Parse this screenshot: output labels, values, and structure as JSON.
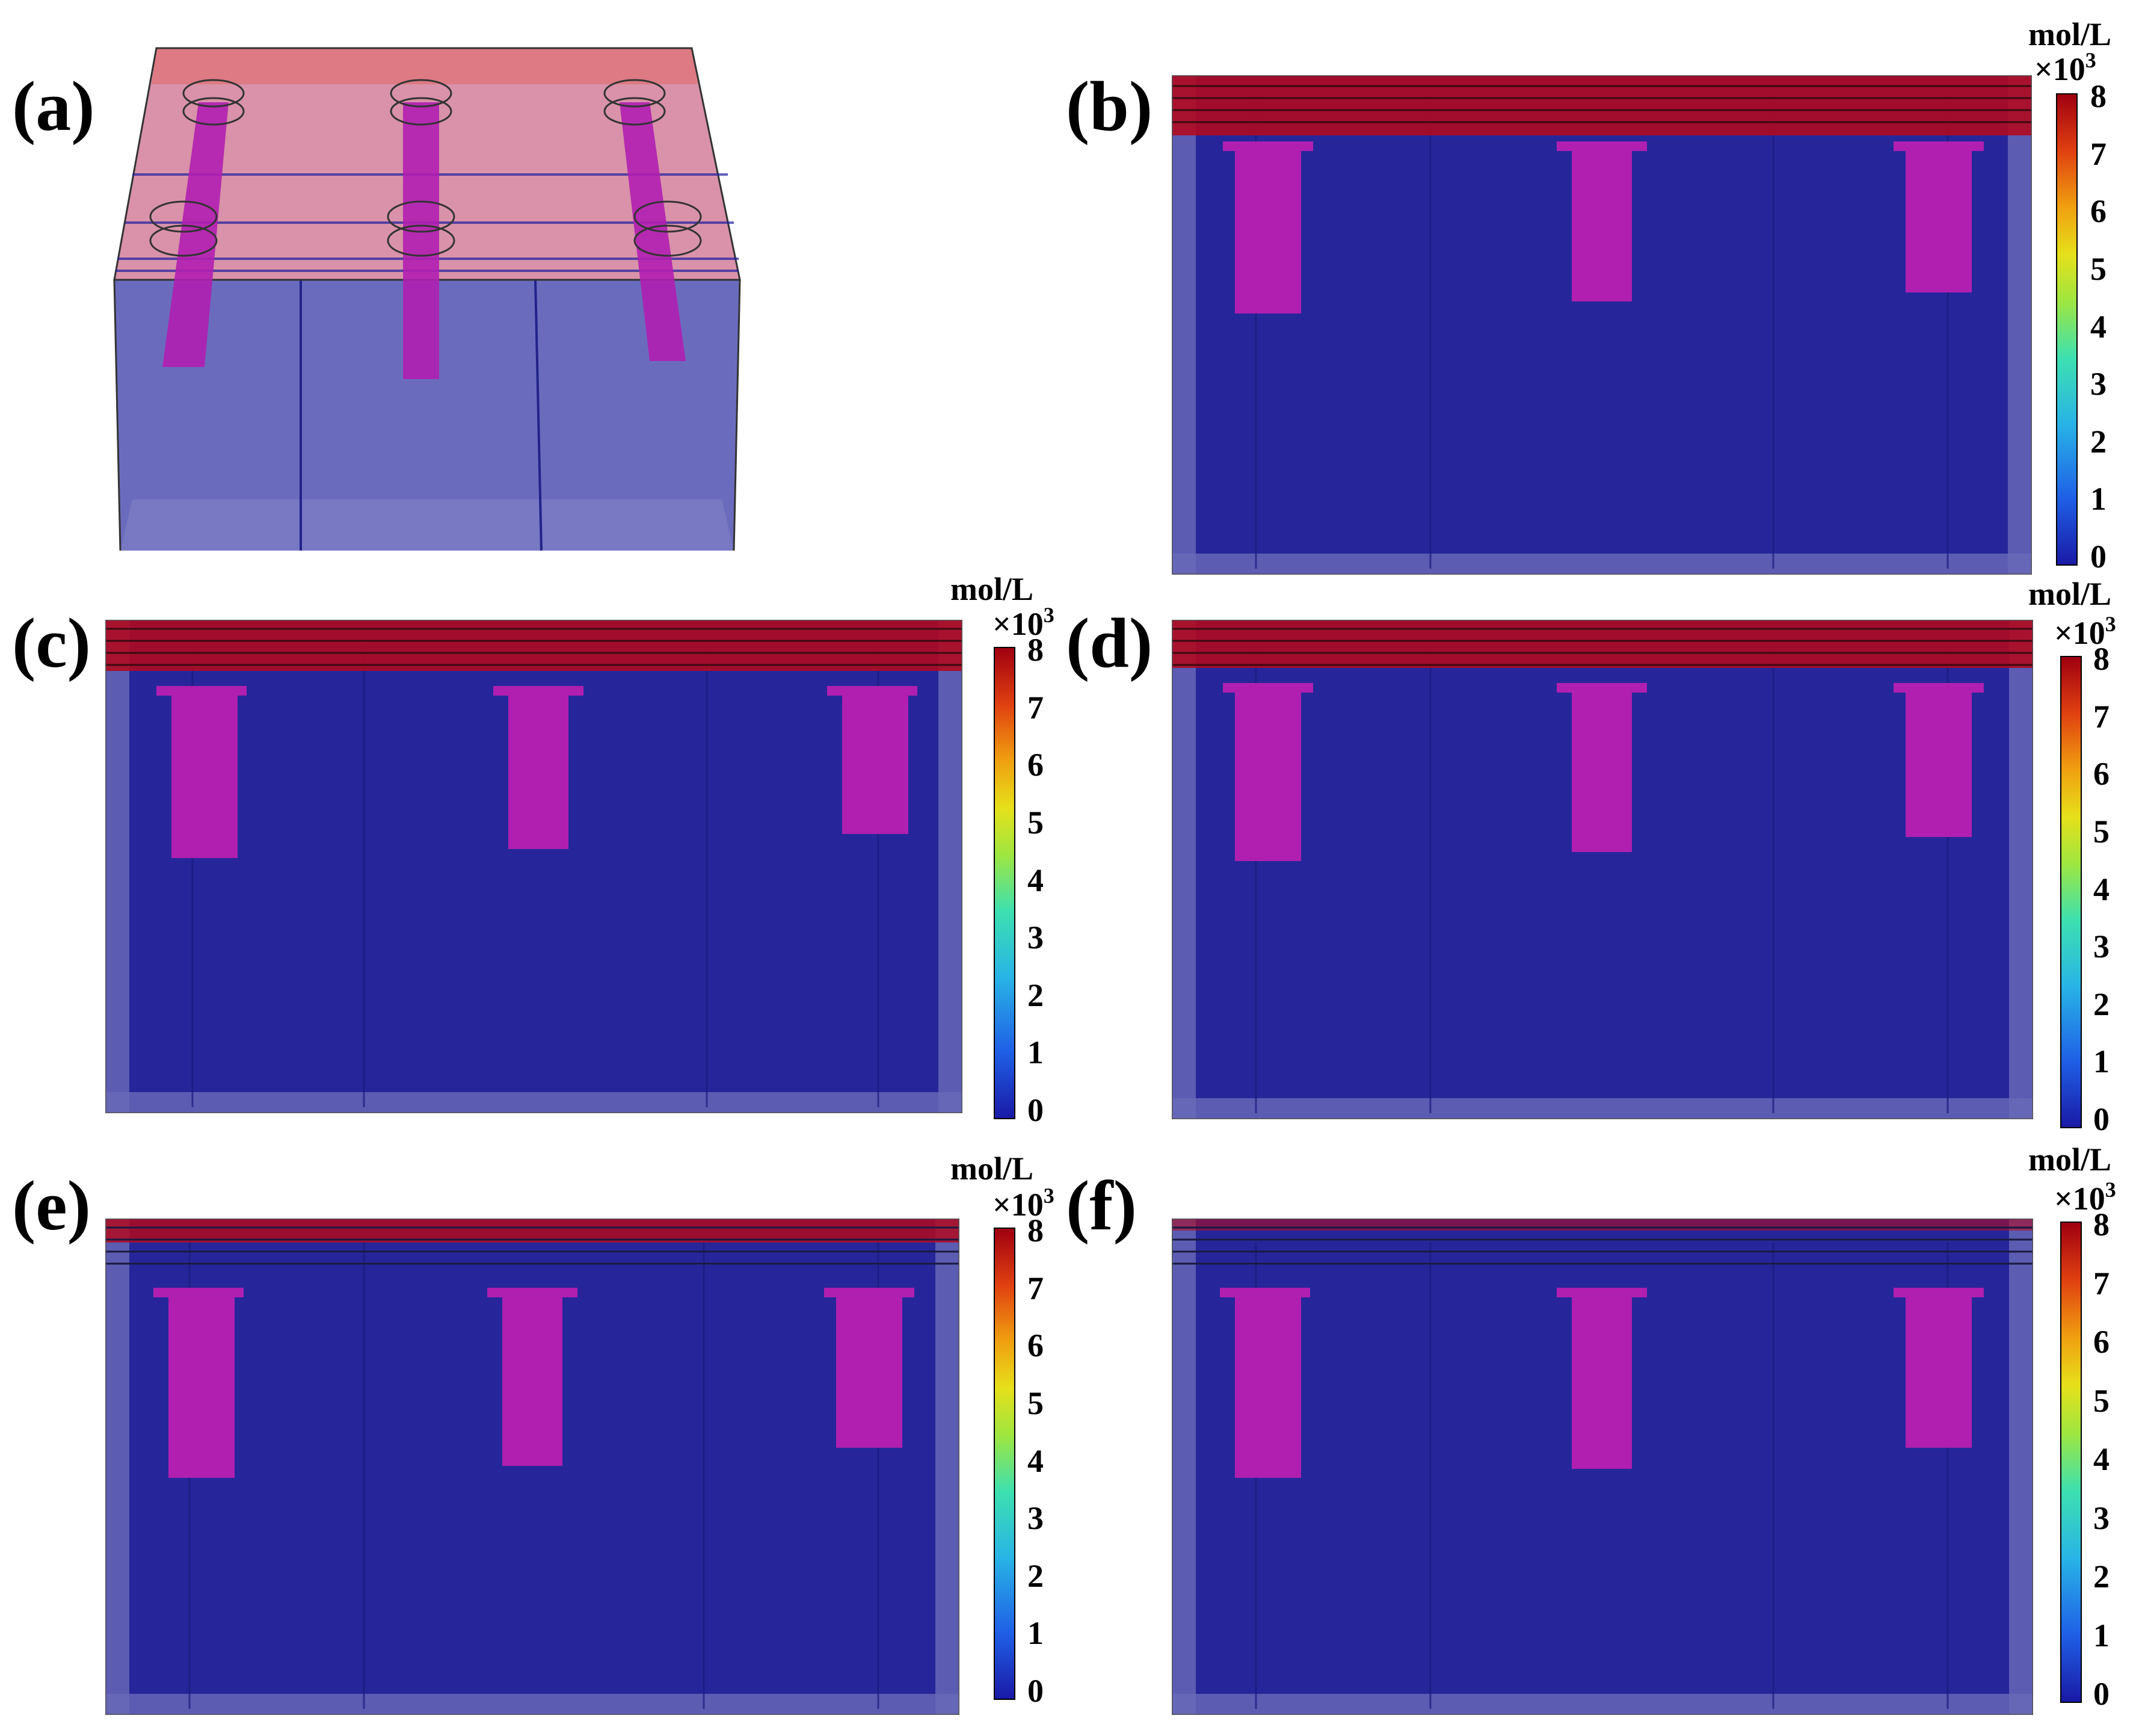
{
  "panels": [
    {
      "label": "(a)"
    },
    {
      "label": "(b)"
    },
    {
      "label": "(c)"
    },
    {
      "label": "(d)"
    },
    {
      "label": "(e)"
    },
    {
      "label": "(f)"
    }
  ],
  "colorbar": {
    "unit": "mol/L",
    "multiplier": "×10",
    "exponent": "3",
    "ticks": [
      "8",
      "7",
      "6",
      "5",
      "4",
      "3",
      "2",
      "1",
      "0"
    ]
  },
  "colors": {
    "low": "#1a1aa6",
    "high": "#a00010",
    "pile": "#b01fb0",
    "box_face": "#2b2ba0"
  }
}
